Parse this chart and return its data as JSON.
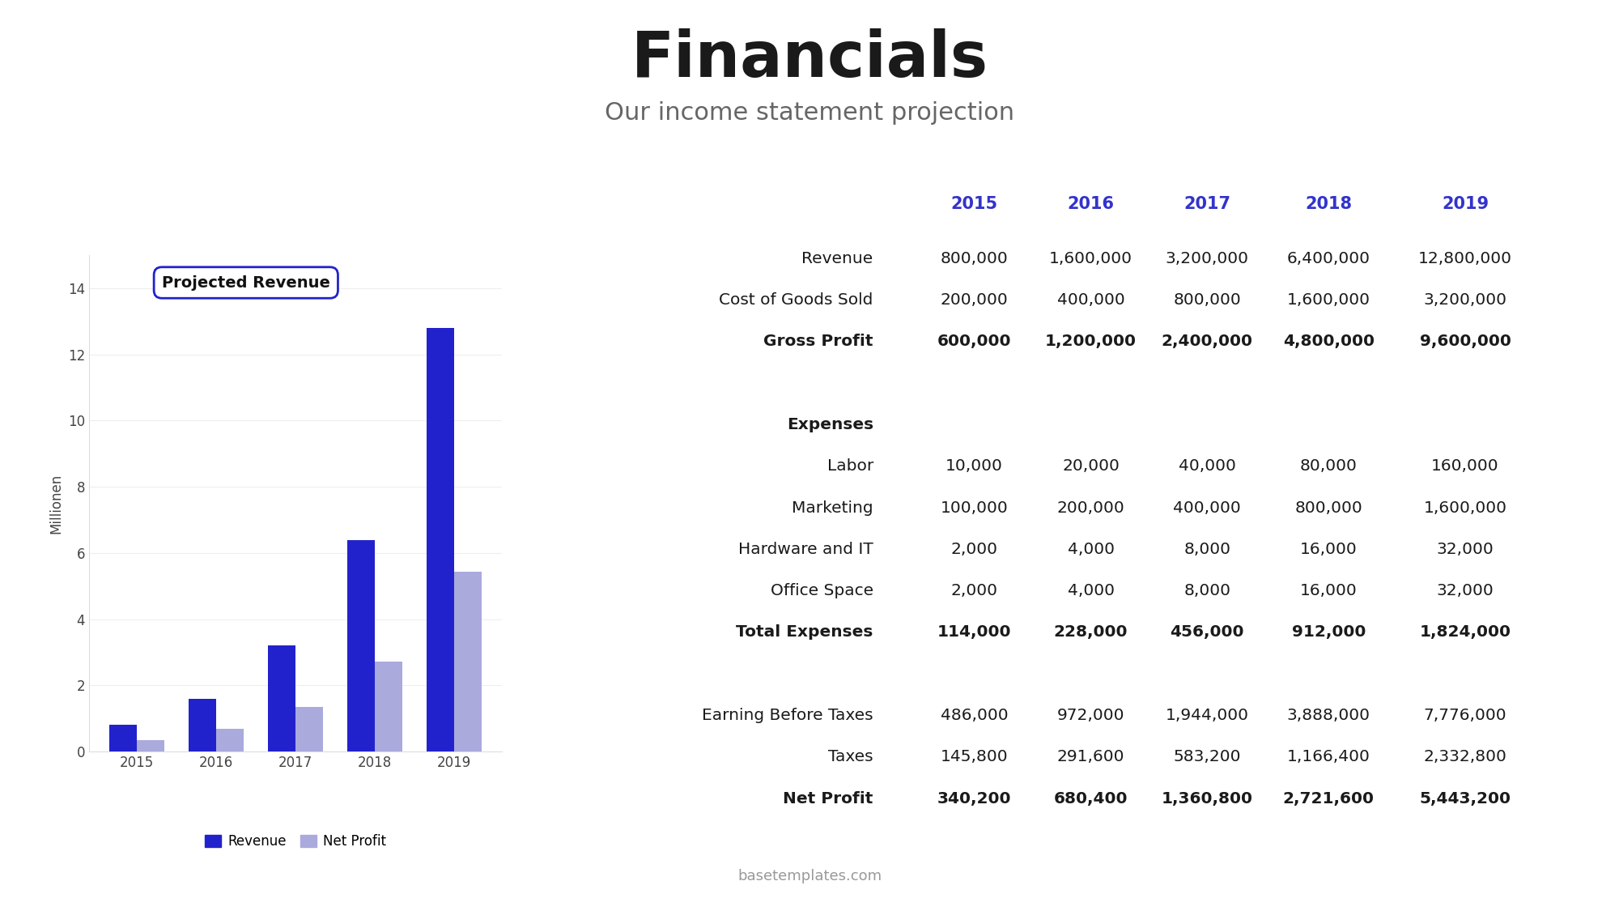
{
  "title": "Financials",
  "subtitle": "Our income statement projection",
  "footer": "basetemplates.com",
  "background_color": "#ffffff",
  "title_color": "#1a1a1a",
  "subtitle_color": "#666666",
  "blue_header_color": "#3333cc",
  "years": [
    "2015",
    "2016",
    "2017",
    "2018",
    "2019"
  ],
  "bar_revenue_color": "#2222cc",
  "bar_netprofit_color": "#aaaadd",
  "bar_revenue_values": [
    0.8,
    1.6,
    3.2,
    6.4,
    12.8
  ],
  "bar_netprofit_values": [
    0.3402,
    0.6804,
    1.3608,
    2.7216,
    5.4432
  ],
  "ylabel": "Millionen",
  "chart_title": "Projected Revenue",
  "table_rows": [
    {
      "label": "Revenue",
      "bold": false,
      "values": [
        "800,000",
        "1,600,000",
        "3,200,000",
        "6,400,000",
        "12,800,000"
      ]
    },
    {
      "label": "Cost of Goods Sold",
      "bold": false,
      "values": [
        "200,000",
        "400,000",
        "800,000",
        "1,600,000",
        "3,200,000"
      ]
    },
    {
      "label": "Gross Profit",
      "bold": true,
      "values": [
        "600,000",
        "1,200,000",
        "2,400,000",
        "4,800,000",
        "9,600,000"
      ]
    },
    {
      "label": "",
      "bold": false,
      "values": [
        "",
        "",
        "",
        "",
        ""
      ]
    },
    {
      "label": "Expenses",
      "bold": true,
      "values": [
        "",
        "",
        "",
        "",
        ""
      ]
    },
    {
      "label": "Labor",
      "bold": false,
      "values": [
        "10,000",
        "20,000",
        "40,000",
        "80,000",
        "160,000"
      ]
    },
    {
      "label": "Marketing",
      "bold": false,
      "values": [
        "100,000",
        "200,000",
        "400,000",
        "800,000",
        "1,600,000"
      ]
    },
    {
      "label": "Hardware and IT",
      "bold": false,
      "values": [
        "2,000",
        "4,000",
        "8,000",
        "16,000",
        "32,000"
      ]
    },
    {
      "label": "Office Space",
      "bold": false,
      "values": [
        "2,000",
        "4,000",
        "8,000",
        "16,000",
        "32,000"
      ]
    },
    {
      "label": "Total Expenses",
      "bold": true,
      "values": [
        "114,000",
        "228,000",
        "456,000",
        "912,000",
        "1,824,000"
      ]
    },
    {
      "label": "",
      "bold": false,
      "values": [
        "",
        "",
        "",
        "",
        ""
      ]
    },
    {
      "label": "Earning Before Taxes",
      "bold": false,
      "values": [
        "486,000",
        "972,000",
        "1,944,000",
        "3,888,000",
        "7,776,000"
      ]
    },
    {
      "label": "Taxes",
      "bold": false,
      "values": [
        "145,800",
        "291,600",
        "583,200",
        "1,166,400",
        "2,332,800"
      ]
    },
    {
      "label": "Net Profit",
      "bold": true,
      "values": [
        "340,200",
        "680,400",
        "1,360,800",
        "2,721,600",
        "5,443,200"
      ]
    }
  ]
}
